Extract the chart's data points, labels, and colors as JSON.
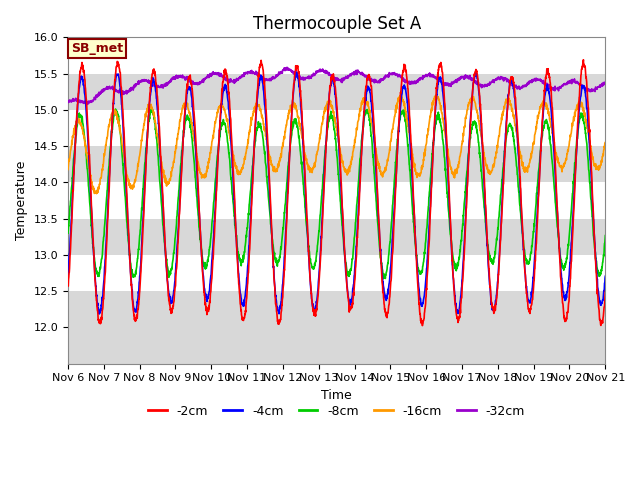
{
  "title": "Thermocouple Set A",
  "xlabel": "Time",
  "ylabel": "Temperature",
  "ylim": [
    11.5,
    16.0
  ],
  "yticks": [
    12.0,
    12.5,
    13.0,
    13.5,
    14.0,
    14.5,
    15.0,
    15.5,
    16.0
  ],
  "xtick_labels": [
    "Nov 6",
    "Nov 7",
    "Nov 8",
    "Nov 9",
    "Nov 10",
    "Nov 11",
    "Nov 12",
    "Nov 13",
    "Nov 14",
    "Nov 15",
    "Nov 16",
    "Nov 17",
    "Nov 18",
    "Nov 19",
    "Nov 20",
    "Nov 21"
  ],
  "legend_entries": [
    "-2cm",
    "-4cm",
    "-8cm",
    "-16cm",
    "-32cm"
  ],
  "line_colors": [
    "#ff0000",
    "#0000ff",
    "#00cc00",
    "#ff9900",
    "#9900cc"
  ],
  "line_widths": [
    1.2,
    1.2,
    1.2,
    1.2,
    1.2
  ],
  "sb_met_label": "SB_met",
  "sb_met_bg": "#ffffcc",
  "sb_met_border": "#8B0000",
  "bg_color": "#ffffff",
  "white_band": "#ffffff",
  "gray_band": "#d8d8d8",
  "title_fontsize": 12,
  "axis_fontsize": 9,
  "tick_fontsize": 8,
  "legend_fontsize": 9
}
